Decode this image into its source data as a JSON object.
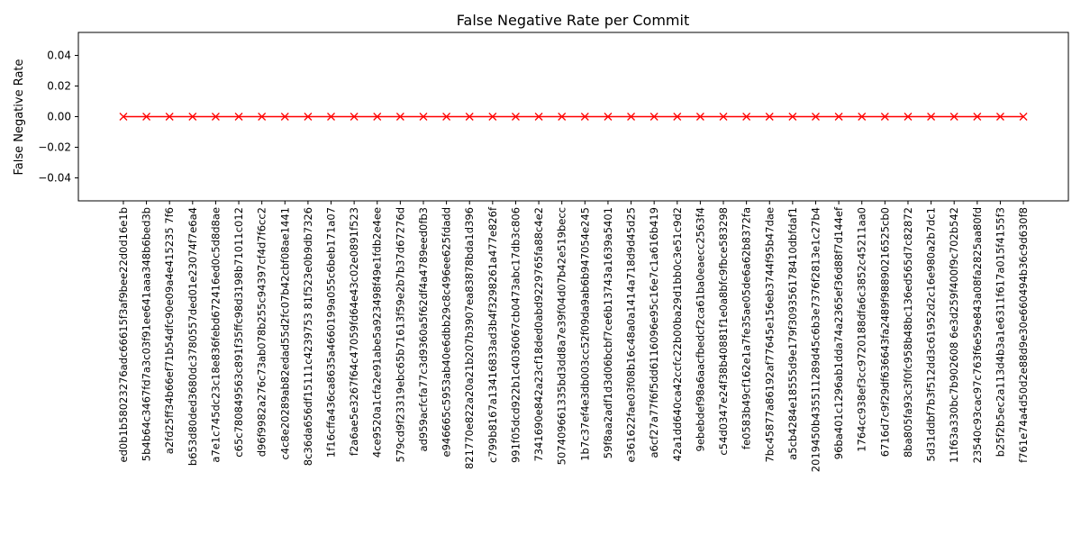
{
  "chart_data": {
    "type": "line",
    "title": "False Negative Rate per Commit",
    "xlabel": "",
    "ylabel": "False Negative Rate",
    "ylim": [
      -0.055,
      0.055
    ],
    "y_ticks": [
      -0.04,
      -0.02,
      0.0,
      0.02,
      0.04
    ],
    "y_tick_labels": [
      "−0.04",
      "−0.02",
      "0.00",
      "0.02",
      "0.04"
    ],
    "grid": false,
    "legend": "none",
    "categories": [
      "ed0b1b58023276adc66615f3af9bee22d0d16e1b",
      "5b4b64c3467fd7a3c03f91ee641aaa348b6bed3b",
      "a2fd25ff34b66ef71b54dfc90e09a4e415235 7f6",
      "b653d80ded3680dc3780557ded01e23074f7e6a4",
      "a7e1c745dc23c18e836febd672416ed0c5d8d8ae",
      "c65c780849563c891f35ffc98d3198b71011c012",
      "d96f9982a276c73ab078b255c94397cf4d7f6cc2",
      "c4c8e20289ab82edad55d2fc07b42cbf08ae1441",
      "8c36da656df15111c4239753 81f523e0b9db7326",
      "1f16cffa436ca8635a4660199a055c6beb171a07",
      "f2a6ae5e3267f64c47059fd64e43c02e0891f523",
      "4ce9520a1cfa2e91abe5a923498f49e1fdb2e4ee",
      "579cd9f23319ebc65b71613f59e2b7b37d67276d",
      "ad959acfcfa77c3d9360a5f62df4a4789eed0fb3",
      "e946665c5953ab40e6dbb29c8c496ee625fdadd",
      "821770e822a20a21b207b3907ea83878bda1d396",
      "c799b8167a13416833ad3b4f3298261a477e826f",
      "991f05dcd922b1c4036067cb0473abc17db3c806",
      "7341690e842a23cf18ded0abd9229765fa88c4e2",
      "507409661335bd3dd8a7e39f04d07b42e519becc",
      "1b7c37ef4e3db003cc52f09da9ab6b947054e245",
      "59f8aa2adf1d3d06bcbf7ce6b13743a1639a5401",
      "e361622fae03f08b16c48a0a1414a718d9d45d25",
      "a6cf27a77f6f5dd6116096e95c16e7c1a616b419",
      "42a1dd640ca42ccfc22b00ba29d1bb0c3e51c9d2",
      "9ebebdef98a6aacfbedcf2ca61ba0eaecc2563f4",
      "c54d0347e24f38b40881f1e0a8bfc9fbce583298",
      "fe0583b49cf162e1a7fe35ae05de6a62b8372fa",
      "7bc45877a86192af77645e156eb3744f95b47dae",
      "a5cb4284e18555d9e179f309356178410dbfdaf1",
      "2019450b435511289d45c6b3e7376f2813e1c27b4",
      "96ba401c1296ab1dda74a2365ef36d88f7d144ef",
      "1764cc938ef3cc9720188dfa6c3852c45211aa0",
      "6716d7c9f29df636643fa2489f98890216525cb0",
      "8ba805fa93c3f0fc958b48bc136ed565d7c82872",
      "5d31ddbf7b3f512dd3c61952d2c16e980a2b7dc1",
      "11f63a330bc7b902608 6e3d259f400f9c702b542",
      "23540c93cac97c763f6e59e843a08fa2825aa80fd",
      "b25f2b5ec2a113d4b3a1e6311f617a015f4155f3",
      "f761e74a4d50d2e88d9e30e660494b36c9d630f8"
    ],
    "series": [
      {
        "values": [
          0,
          0,
          0,
          0,
          0,
          0,
          0,
          0,
          0,
          0,
          0,
          0,
          0,
          0,
          0,
          0,
          0,
          0,
          0,
          0,
          0,
          0,
          0,
          0,
          0,
          0,
          0,
          0,
          0,
          0,
          0,
          0,
          0,
          0,
          0,
          0,
          0,
          0,
          0,
          0
        ],
        "color": "#ff0000",
        "marker": "x",
        "line_style": "solid"
      }
    ]
  }
}
